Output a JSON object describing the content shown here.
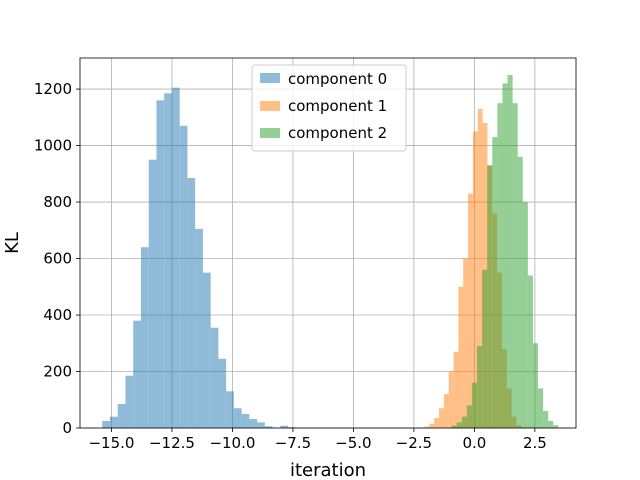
{
  "chart_data": {
    "type": "histogram",
    "title": "",
    "xlabel": "iteration",
    "ylabel": "KL",
    "xlim": [
      -16.3,
      4.2
    ],
    "ylim": [
      0,
      1310
    ],
    "grid": true,
    "legend_position": "top-center",
    "x_ticks": [
      -15.0,
      -12.5,
      -10.0,
      -7.5,
      -5.0,
      -2.5,
      0.0,
      2.5
    ],
    "x_tick_labels": [
      "−15.0",
      "−12.5",
      "−10.0",
      "−7.5",
      "−5.0",
      "−2.5",
      "0.0",
      "2.5"
    ],
    "y_ticks": [
      0,
      200,
      400,
      600,
      800,
      1000,
      1200
    ],
    "y_tick_labels": [
      "0",
      "200",
      "400",
      "600",
      "800",
      "1000",
      "1200"
    ],
    "series": [
      {
        "name": "component 0",
        "color": "#1f77b4",
        "alpha": 0.5,
        "bin_edges": [
          -15.38,
          -15.06,
          -14.74,
          -14.42,
          -14.1,
          -13.78,
          -13.46,
          -13.14,
          -12.82,
          -12.5,
          -12.18,
          -11.86,
          -11.54,
          -11.22,
          -10.9,
          -10.58,
          -10.26,
          -9.94,
          -9.62,
          -9.3,
          -8.98,
          -8.66,
          -8.34,
          -8.02,
          -7.7,
          -7.38
        ],
        "values": [
          25,
          40,
          85,
          185,
          380,
          640,
          950,
          1160,
          1185,
          1205,
          1070,
          885,
          705,
          550,
          355,
          245,
          130,
          70,
          50,
          32,
          20,
          6,
          0,
          8,
          3
        ]
      },
      {
        "name": "component 1",
        "color": "#ff7f0e",
        "alpha": 0.5,
        "bin_edges": [
          -2.06,
          -1.86,
          -1.66,
          -1.46,
          -1.26,
          -1.06,
          -0.86,
          -0.66,
          -0.46,
          -0.26,
          -0.06,
          0.14,
          0.34,
          0.54,
          0.74,
          0.94,
          1.14,
          1.34,
          1.54,
          1.74,
          1.94,
          2.14
        ],
        "values": [
          5,
          15,
          35,
          70,
          120,
          200,
          270,
          500,
          600,
          830,
          1050,
          1130,
          1080,
          930,
          760,
          550,
          280,
          140,
          40,
          10,
          3
        ]
      },
      {
        "name": "component 2",
        "color": "#2ca02c",
        "alpha": 0.5,
        "bin_edges": [
          -0.94,
          -0.73,
          -0.52,
          -0.31,
          -0.1,
          0.11,
          0.32,
          0.53,
          0.74,
          0.95,
          1.16,
          1.37,
          1.58,
          1.79,
          2.0,
          2.21,
          2.42,
          2.63,
          2.84,
          3.05,
          3.26,
          3.47
        ],
        "values": [
          8,
          20,
          40,
          80,
          160,
          290,
          560,
          930,
          1030,
          1150,
          1220,
          1250,
          1150,
          960,
          800,
          540,
          300,
          140,
          60,
          25,
          10
        ]
      }
    ]
  }
}
